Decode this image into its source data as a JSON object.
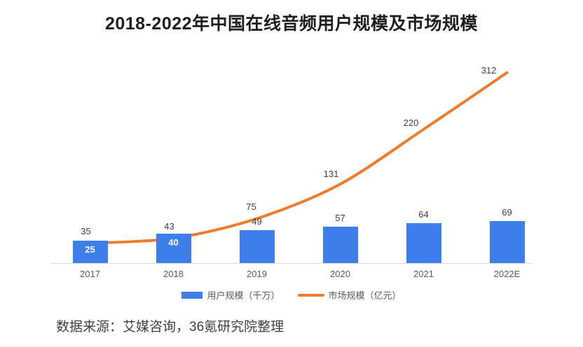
{
  "title": "2018-2022年中国在线音频用户规模及市场规模",
  "footer": {
    "source_text": "数据来源：艾媒咨询，36氪研究院整理"
  },
  "colors": {
    "bar": "#3e7eea",
    "line": "#ee7c2b",
    "axis": "#d9d9d9",
    "bar_label_inside": "#ffffff",
    "label_text": "#404040",
    "tick_text": "#595959"
  },
  "legend": {
    "items": [
      {
        "label": "用户规模（千万）",
        "type": "bar"
      },
      {
        "label": "市场规模（亿元）",
        "type": "line"
      }
    ]
  },
  "chart_data": {
    "type": "bar",
    "subtype": "bar-line combo, dual axis",
    "title": "2018-2022年中国在线音频用户规模及市场规模",
    "categories": [
      "2017",
      "2018",
      "2019",
      "2020",
      "2021",
      "2022E"
    ],
    "series": [
      {
        "name": "用户规模（千万）",
        "type": "bar",
        "color": "#3e7eea",
        "values": [
          25,
          40,
          49,
          57,
          64,
          69
        ]
      },
      {
        "name": "市场规模（亿元）",
        "type": "line",
        "color": "#ee7c2b",
        "values": [
          35,
          43,
          75,
          131,
          220,
          312
        ]
      }
    ],
    "xlabel": "",
    "ylabel": "",
    "grid": false,
    "legend_position": "bottom",
    "bar_labels_inside": [
      true,
      true,
      false,
      false,
      false,
      false
    ],
    "data_labels_visible": true
  }
}
